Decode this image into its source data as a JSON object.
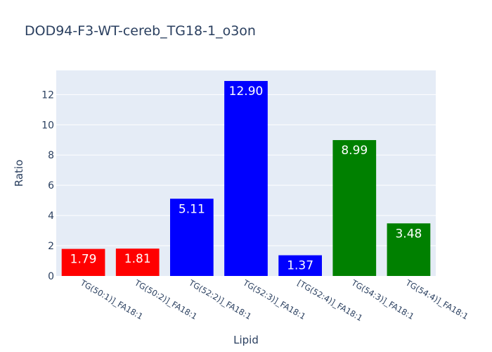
{
  "chart_data": {
    "type": "bar",
    "title": "DOD94-F3-WT-cereb_TG18-1_o3on",
    "xlabel": "Lipid",
    "ylabel": "Ratio",
    "categories": [
      "TG(50:1)]_FA18:1",
      "TG(50:2)]_FA18:1",
      "TG(52:2)]_FA18:1",
      "TG(52:3)]_FA18:1",
      "[TG(52:4)]_FA18:1",
      "TG(54:3)]_FA18:1",
      "TG(54:4)]_FA18:1"
    ],
    "values": [
      1.79,
      1.81,
      5.11,
      12.9,
      1.37,
      8.99,
      3.48
    ],
    "value_labels": [
      "1.79",
      "1.81",
      "5.11",
      "12.90",
      "1.37",
      "8.99",
      "3.48"
    ],
    "colors": [
      "#ff0000",
      "#ff0000",
      "#0000ff",
      "#0000ff",
      "#0000ff",
      "#008000",
      "#008000"
    ],
    "ylim": [
      0,
      13.6
    ],
    "yticks": [
      0,
      2,
      4,
      6,
      8,
      10,
      12
    ],
    "ytick_labels": [
      "0",
      "2",
      "4",
      "6",
      "8",
      "10",
      "12"
    ],
    "grid": true,
    "plot_background": "#e5ecf6"
  }
}
